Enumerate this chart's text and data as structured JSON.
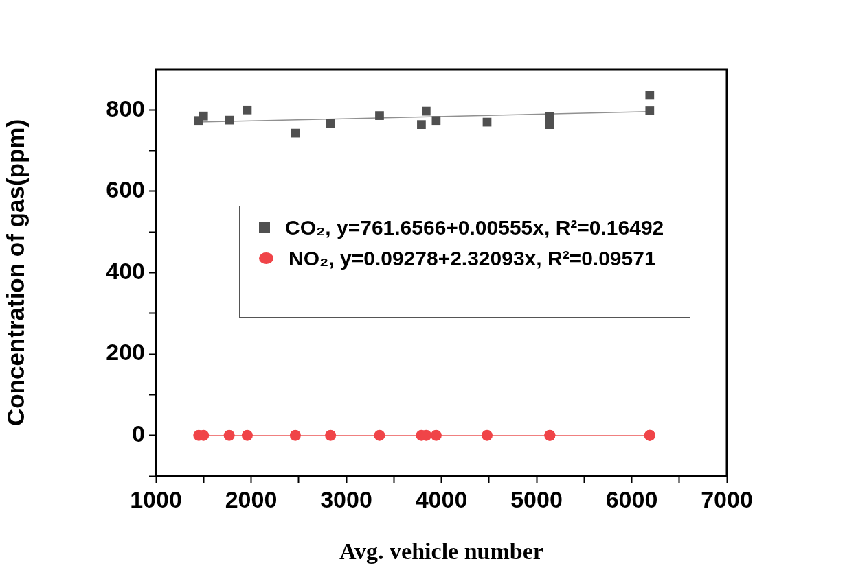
{
  "chart_data": {
    "type": "scatter",
    "xlabel": "Avg. vehicle number",
    "ylabel": "Concentration of gas(ppm)",
    "xlim": [
      1000,
      7000
    ],
    "ylim": [
      -100,
      900
    ],
    "xticks": [
      1000,
      {
        "value": 1500,
        "label": null
      },
      2000,
      {
        "value": 2500,
        "label": null
      },
      3000,
      {
        "value": 3500,
        "label": null
      },
      4000,
      {
        "value": 4500,
        "label": null
      },
      5000,
      {
        "value": 5500,
        "label": null
      },
      6000,
      {
        "value": 6500,
        "label": null
      },
      7000
    ],
    "yticks": [
      {
        "value": -100,
        "label": null
      },
      0,
      {
        "value": 100,
        "label": null
      },
      200,
      {
        "value": 300,
        "label": null
      },
      400,
      {
        "value": 500,
        "label": null
      },
      600,
      {
        "value": 700,
        "label": null
      },
      800
    ],
    "grid": false,
    "legend": "center",
    "series": [
      {
        "name": "CO₂, y=761.6566+0.00555x, R²=0.16492",
        "type": "scatter",
        "marker": "square",
        "color": "#505050",
        "x": [
          1450,
          1500,
          1770,
          1960,
          2465,
          2835,
          3350,
          3790,
          3840,
          3945,
          4480,
          5140,
          5140,
          6190,
          6190
        ],
        "values": [
          774,
          785,
          775,
          800,
          743,
          767,
          786,
          764,
          797,
          774,
          770,
          784,
          764,
          836,
          798
        ]
      },
      {
        "name": "NO₂, y=0.09278+2.32093x, R²=0.09571",
        "type": "scatter",
        "marker": "circle",
        "color": "#f04448",
        "x": [
          1450,
          1500,
          1770,
          1960,
          2465,
          2835,
          3350,
          3790,
          3840,
          3945,
          4480,
          5140,
          5140,
          6190,
          6190
        ],
        "values": [
          0,
          0,
          0,
          0,
          0,
          0,
          0,
          0,
          0,
          0,
          0,
          0,
          0,
          0,
          0
        ]
      },
      {
        "type": "line",
        "marker": "none",
        "color": "#909090",
        "x": [
          1450,
          6190
        ],
        "values": [
          770,
          796
        ]
      },
      {
        "type": "line",
        "marker": "none",
        "color": "#f08080",
        "x": [
          1450,
          6190
        ],
        "values": [
          0,
          0
        ]
      }
    ]
  }
}
